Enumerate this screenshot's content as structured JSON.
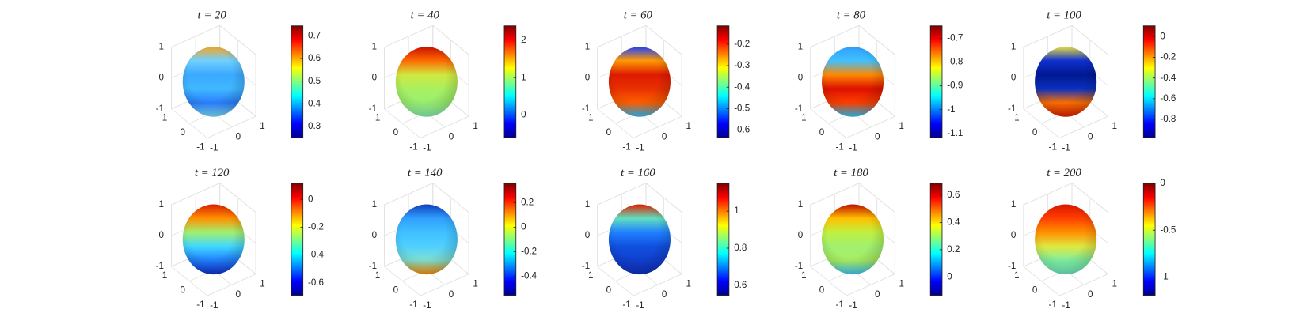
{
  "chart_data": [
    {
      "type": "surface",
      "title": "t = 20",
      "xlim": [
        -1,
        1
      ],
      "ylim": [
        -1,
        1
      ],
      "zlim": [
        -1,
        1
      ],
      "xticks": [
        -1,
        0,
        1
      ],
      "yticks": [
        -1,
        0,
        1
      ],
      "zticks": [
        -1,
        0,
        1
      ],
      "colormap": "jet",
      "clim": [
        0.25,
        0.745
      ],
      "cticks": [
        0.3,
        0.4,
        0.5,
        0.6,
        0.7
      ],
      "band_colors": [
        "#f5a623",
        "#6fd0ff",
        "#3aa8ff",
        "#40b8ff",
        "#2a80ff",
        "#7fe0ff"
      ]
    },
    {
      "type": "surface",
      "title": "t = 40",
      "xlim": [
        -1,
        1
      ],
      "ylim": [
        -1,
        1
      ],
      "zlim": [
        -1,
        1
      ],
      "xticks": [
        -1,
        0,
        1
      ],
      "yticks": [
        -1,
        0,
        1
      ],
      "zticks": [
        -1,
        0,
        1
      ],
      "colormap": "jet",
      "clim": [
        -0.6,
        2.38
      ],
      "cticks": [
        0,
        1,
        2
      ],
      "band_colors": [
        "#cc1100",
        "#ff6a00",
        "#d0e840",
        "#a8f060",
        "#9af070",
        "#8aeeb0"
      ]
    },
    {
      "type": "surface",
      "title": "t = 60",
      "xlim": [
        -1,
        1
      ],
      "ylim": [
        -1,
        1
      ],
      "zlim": [
        -1,
        1
      ],
      "xticks": [
        -1,
        0,
        1
      ],
      "yticks": [
        -1,
        0,
        1
      ],
      "zticks": [
        -1,
        0,
        1
      ],
      "colormap": "jet",
      "clim": [
        -0.635,
        -0.115
      ],
      "cticks": [
        -0.6,
        -0.5,
        -0.4,
        -0.3,
        -0.2
      ],
      "band_colors": [
        "#2040ff",
        "#ff9a00",
        "#dd1a00",
        "#e83000",
        "#ff6000",
        "#30c0ff"
      ]
    },
    {
      "type": "surface",
      "title": "t = 80",
      "xlim": [
        -1,
        1
      ],
      "ylim": [
        -1,
        1
      ],
      "zlim": [
        -1,
        1
      ],
      "xticks": [
        -1,
        0,
        1
      ],
      "yticks": [
        -1,
        0,
        1
      ],
      "zticks": [
        -1,
        0,
        1
      ],
      "colormap": "jet",
      "clim": [
        -1.118,
        -0.647
      ],
      "cticks": [
        -1.1,
        -1,
        -0.9,
        -0.8,
        -0.7
      ],
      "band_colors": [
        "#30a0ff",
        "#40c0ff",
        "#ff8800",
        "#dd1000",
        "#ff4000",
        "#30c8ff"
      ]
    },
    {
      "type": "surface",
      "title": "t = 100",
      "xlim": [
        -1,
        1
      ],
      "ylim": [
        -1,
        1
      ],
      "zlim": [
        -1,
        1
      ],
      "xticks": [
        -1,
        0,
        1
      ],
      "yticks": [
        -1,
        0,
        1
      ],
      "zticks": [
        -1,
        0,
        1
      ],
      "colormap": "jet",
      "clim": [
        -0.976,
        0.104
      ],
      "cticks": [
        -0.8,
        -0.6,
        -0.4,
        -0.2,
        0
      ],
      "band_colors": [
        "#e8e040",
        "#1030d0",
        "#001890",
        "#0a30c0",
        "#ff7000",
        "#dd2000"
      ]
    },
    {
      "type": "surface",
      "title": "t = 120",
      "xlim": [
        -1,
        1
      ],
      "ylim": [
        -1,
        1
      ],
      "zlim": [
        -1,
        1
      ],
      "xticks": [
        -1,
        0,
        1
      ],
      "yticks": [
        -1,
        0,
        1
      ],
      "zticks": [
        -1,
        0,
        1
      ],
      "colormap": "jet",
      "clim": [
        -0.69,
        0.114
      ],
      "cticks": [
        -0.6,
        -0.4,
        -0.2,
        0
      ],
      "band_colors": [
        "#dd2000",
        "#ff9000",
        "#a0f070",
        "#40d8ff",
        "#2080ff",
        "#1030d0"
      ]
    },
    {
      "type": "surface",
      "title": "t = 140",
      "xlim": [
        -1,
        1
      ],
      "ylim": [
        -1,
        1
      ],
      "zlim": [
        -1,
        1
      ],
      "xticks": [
        -1,
        0,
        1
      ],
      "yticks": [
        -1,
        0,
        1
      ],
      "zticks": [
        -1,
        0,
        1
      ],
      "colormap": "jet",
      "clim": [
        -0.557,
        0.357
      ],
      "cticks": [
        -0.4,
        -0.2,
        0,
        0.2
      ],
      "band_colors": [
        "#1040c0",
        "#30a0ff",
        "#40c0ff",
        "#50d0ff",
        "#80e0d0",
        "#ff9000"
      ]
    },
    {
      "type": "surface",
      "title": "t = 160",
      "xlim": [
        -1,
        1
      ],
      "ylim": [
        -1,
        1
      ],
      "zlim": [
        -1,
        1
      ],
      "xticks": [
        -1,
        0,
        1
      ],
      "yticks": [
        -1,
        0,
        1
      ],
      "zticks": [
        -1,
        0,
        1
      ],
      "colormap": "jet",
      "clim": [
        0.546,
        1.149
      ],
      "cticks": [
        0.6,
        0.8,
        1
      ],
      "band_colors": [
        "#e02000",
        "#60e0c0",
        "#2080ff",
        "#1050e0",
        "#1040d0",
        "#1030c0"
      ]
    },
    {
      "type": "surface",
      "title": "t = 180",
      "xlim": [
        -1,
        1
      ],
      "ylim": [
        -1,
        1
      ],
      "zlim": [
        -1,
        1
      ],
      "xticks": [
        -1,
        0,
        1
      ],
      "yticks": [
        -1,
        0,
        1
      ],
      "zticks": [
        -1,
        0,
        1
      ],
      "colormap": "jet",
      "clim": [
        -0.135,
        0.686
      ],
      "cticks": [
        0,
        0.2,
        0.4,
        0.6
      ],
      "band_colors": [
        "#c01000",
        "#ffc000",
        "#c0f040",
        "#a0f070",
        "#a8ee60",
        "#40c8ff"
      ]
    },
    {
      "type": "surface",
      "title": "t = 200",
      "xlim": [
        -1,
        1
      ],
      "ylim": [
        -1,
        1
      ],
      "zlim": [
        -1,
        1
      ],
      "xticks": [
        -1,
        0,
        1
      ],
      "yticks": [
        -1,
        0,
        1
      ],
      "zticks": [
        -1,
        0,
        1
      ],
      "colormap": "jet",
      "clim": [
        -1.196,
        0
      ],
      "cticks": [
        -1,
        -0.5,
        0
      ],
      "band_colors": [
        "#dd1500",
        "#ff4000",
        "#ff9000",
        "#e0e840",
        "#80f0a0",
        "#70e8c0"
      ]
    }
  ]
}
